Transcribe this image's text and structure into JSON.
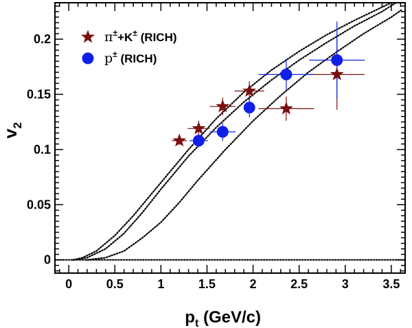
{
  "chart_data": {
    "type": "scatter",
    "title": "",
    "xlabel": {
      "main": "p",
      "sub": "t",
      "rest": " (GeV/c)"
    },
    "ylabel": {
      "main": "v",
      "sub": "2"
    },
    "xlim": [
      -0.15,
      3.65
    ],
    "ylim": [
      -0.012,
      0.233
    ],
    "xticks": [
      0,
      0.5,
      1,
      1.5,
      2,
      2.5,
      3,
      3.5
    ],
    "xtick_labels": [
      "0",
      "0.5",
      "1",
      "1.5",
      "2",
      "2.5",
      "3",
      "3.5"
    ],
    "yticks": [
      0,
      0.05,
      0.1,
      0.15,
      0.2
    ],
    "ytick_labels": [
      "0",
      "0.05",
      "0.1",
      "0.15",
      "0.2"
    ],
    "grid": false,
    "legend_position": "top-left",
    "series": [
      {
        "name": "π±+K± (RICH)",
        "legend": {
          "base": "π",
          "sup1": "±",
          "mid": "+K",
          "sup2": "±",
          "rest": " (RICH)"
        },
        "marker": "star",
        "color": "#7a1010",
        "points": [
          {
            "x": 1.2,
            "y": 0.108,
            "xerr": [
              0.08,
              0.08
            ],
            "yerr": [
              0.004,
              0.004
            ]
          },
          {
            "x": 1.41,
            "y": 0.119,
            "xerr": [
              0.12,
              0.12
            ],
            "yerr": [
              0.007,
              0.007
            ]
          },
          {
            "x": 1.67,
            "y": 0.139,
            "xerr": [
              0.14,
              0.14
            ],
            "yerr": [
              0.008,
              0.008
            ]
          },
          {
            "x": 1.96,
            "y": 0.153,
            "xerr": [
              0.16,
              0.16
            ],
            "yerr": [
              0.009,
              0.009
            ]
          },
          {
            "x": 2.36,
            "y": 0.137,
            "xerr": [
              0.3,
              0.3
            ],
            "yerr": [
              0.011,
              0.011
            ]
          },
          {
            "x": 2.91,
            "y": 0.168,
            "xerr": [
              0.3,
              0.3
            ],
            "yerr": [
              0.032,
              0.032
            ]
          }
        ]
      },
      {
        "name": "p± (RICH)",
        "legend": {
          "base": "p",
          "sup1": "±",
          "mid": "",
          "sup2": "",
          "rest": " (RICH)"
        },
        "marker": "circle",
        "color": "#0f1fea",
        "points": [
          {
            "x": 1.41,
            "y": 0.108,
            "xerr": [
              0.1,
              0.1
            ],
            "yerr": [
              0.006,
              0.006
            ]
          },
          {
            "x": 1.67,
            "y": 0.116,
            "xerr": [
              0.14,
              0.14
            ],
            "yerr": [
              0.008,
              0.008
            ]
          },
          {
            "x": 1.96,
            "y": 0.138,
            "xerr": [
              0.0,
              0.0
            ],
            "yerr": [
              0.009,
              0.009
            ]
          },
          {
            "x": 2.36,
            "y": 0.168,
            "xerr": [
              0.3,
              0.3
            ],
            "yerr": [
              0.014,
              0.014
            ]
          },
          {
            "x": 2.91,
            "y": 0.181,
            "xerr": [
              0.3,
              0.3
            ],
            "yerr": [
              0.035,
              0.035
            ]
          }
        ]
      }
    ],
    "reference_curves": [
      {
        "style": "dotted",
        "color": "#000000",
        "points": [
          [
            0.05,
            0
          ],
          [
            0.15,
            0.002
          ],
          [
            0.3,
            0.008
          ],
          [
            0.5,
            0.022
          ],
          [
            0.7,
            0.04
          ],
          [
            1.0,
            0.07
          ],
          [
            1.3,
            0.1
          ],
          [
            1.6,
            0.128
          ],
          [
            1.9,
            0.152
          ],
          [
            2.2,
            0.172
          ],
          [
            2.5,
            0.189
          ],
          [
            2.8,
            0.204
          ],
          [
            3.1,
            0.217
          ],
          [
            3.4,
            0.229
          ],
          [
            3.5,
            0.233
          ]
        ]
      },
      {
        "style": "dotted",
        "color": "#000000",
        "points": [
          [
            0.05,
            0
          ],
          [
            0.2,
            0.002
          ],
          [
            0.4,
            0.01
          ],
          [
            0.6,
            0.024
          ],
          [
            0.8,
            0.043
          ],
          [
            1.0,
            0.064
          ],
          [
            1.3,
            0.094
          ],
          [
            1.6,
            0.12
          ],
          [
            1.9,
            0.143
          ],
          [
            2.2,
            0.163
          ],
          [
            2.5,
            0.181
          ],
          [
            2.8,
            0.197
          ],
          [
            3.1,
            0.212
          ],
          [
            3.4,
            0.225
          ],
          [
            3.55,
            0.233
          ]
        ]
      },
      {
        "style": "dotted",
        "color": "#000000",
        "points": [
          [
            0.2,
            0
          ],
          [
            0.4,
            0.002
          ],
          [
            0.6,
            0.008
          ],
          [
            0.8,
            0.02
          ],
          [
            1.0,
            0.034
          ],
          [
            1.2,
            0.052
          ],
          [
            1.4,
            0.072
          ],
          [
            1.7,
            0.1
          ],
          [
            2.0,
            0.126
          ],
          [
            2.3,
            0.149
          ],
          [
            2.6,
            0.17
          ],
          [
            2.9,
            0.188
          ],
          [
            3.2,
            0.205
          ],
          [
            3.5,
            0.22
          ],
          [
            3.62,
            0.227
          ]
        ]
      },
      {
        "style": "dotted",
        "color": "#000000",
        "points": [
          [
            -0.15,
            0
          ],
          [
            3.65,
            0
          ]
        ]
      }
    ]
  }
}
